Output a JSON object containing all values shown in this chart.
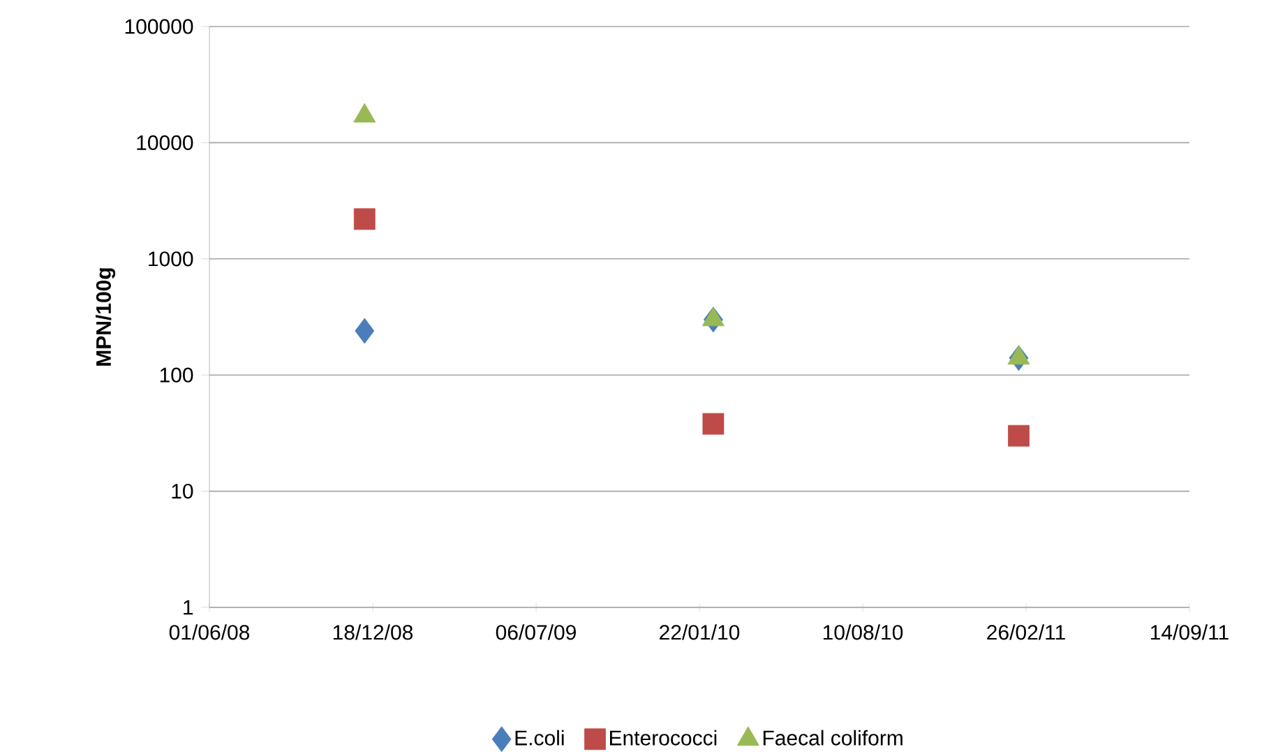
{
  "chart_data": {
    "type": "scatter",
    "ylabel": "MPN/100g",
    "log": "y",
    "grid": "y",
    "legend": "bottom",
    "x": [
      "2008-12-08",
      "2010-02-08",
      "2011-02-17"
    ],
    "series": [
      {
        "name": "E.coli",
        "color": "#4a7ebb",
        "marker": "diamond",
        "values": [
          240,
          300,
          140
        ]
      },
      {
        "name": "Enterococci",
        "color": "#be4b48",
        "marker": "square",
        "values": [
          2200,
          38,
          30
        ]
      },
      {
        "name": "Faecal coliform",
        "color": "#98b954",
        "marker": "triangle",
        "values": [
          17000,
          300,
          140
        ]
      }
    ],
    "xlim": [
      "2008-06-01",
      "2011-09-14"
    ],
    "xticks": [
      {
        "value": "2008-06-01",
        "label": "01/06/08"
      },
      {
        "value": "2008-12-18",
        "label": "18/12/08"
      },
      {
        "value": "2009-07-06",
        "label": "06/07/09"
      },
      {
        "value": "2010-01-22",
        "label": "22/01/10"
      },
      {
        "value": "2010-08-10",
        "label": "10/08/10"
      },
      {
        "value": "2011-02-26",
        "label": "26/02/11"
      },
      {
        "value": "2011-09-14",
        "label": "14/09/11"
      }
    ],
    "ylim": [
      1,
      100000
    ],
    "yticks": [
      1,
      10,
      100,
      1000,
      10000,
      100000
    ]
  }
}
